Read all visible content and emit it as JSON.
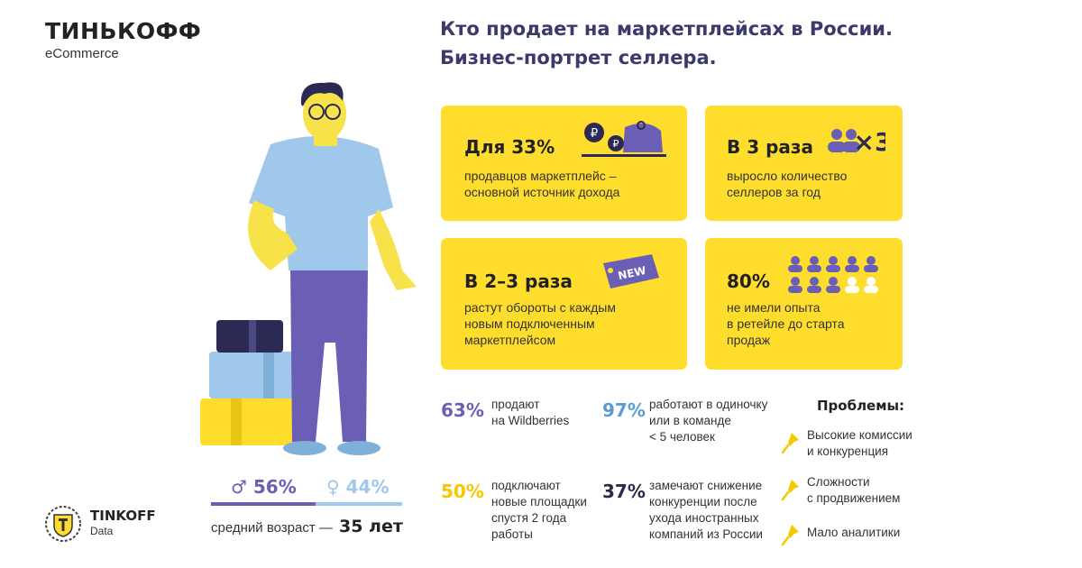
{
  "brand": {
    "name": "ТИНЬКОФФ",
    "sub": "eCommerce"
  },
  "headline": {
    "line1": "Кто продает на маркетплейсах в России.",
    "line2": "Бизнес-портрет селлера."
  },
  "cards": [
    {
      "title": "Для 33%",
      "text1": "продавцов маркетплейс –",
      "text2": "основной источник дохода",
      "text3": "",
      "icon": "wallet-coins-icon"
    },
    {
      "title": "В 3 раза",
      "text1": "выросло количество",
      "text2": "селлеров за год",
      "text3": "",
      "icon": "people-times-three-icon",
      "icon_text": "×3"
    },
    {
      "title": "В 2–3 раза",
      "text1": "растут обороты с каждым",
      "text2": "новым подключенным",
      "text3": "маркетплейсом",
      "icon": "new-tag-icon",
      "icon_text": "NEW"
    },
    {
      "title": "80%",
      "text1": "не имели опыта",
      "text2": "в ретейле до старта",
      "text3": "продаж",
      "icon": "people-grid-icon"
    }
  ],
  "stats": [
    {
      "value": "63%",
      "line1": "продают",
      "line2": "на Wildberries",
      "line3": "",
      "line4": "",
      "color": "#6b5fb5"
    },
    {
      "value": "97%",
      "line1": "работают в одиночку",
      "line2": "или в команде",
      "line3": "< 5 человек",
      "line4": "",
      "color": "#5b9bd5"
    },
    {
      "value": "50%",
      "line1": "подключают",
      "line2": "новые площадки",
      "line3": "спустя 2 года",
      "line4": "работы",
      "color": "#f5c800"
    },
    {
      "value": "37%",
      "line1": "замечают снижение",
      "line2": "конкуренции после",
      "line3": "ухода иностранных",
      "line4": "компаний из России",
      "color": "#2a2a4a"
    }
  ],
  "problems": {
    "title": "Проблемы:",
    "items": [
      {
        "line1": "Высокие комиссии",
        "line2": "и конкуренция"
      },
      {
        "line1": "Сложности",
        "line2": "с продвижением"
      },
      {
        "line1": "Мало аналитики",
        "line2": ""
      }
    ]
  },
  "gender": {
    "male": "♂ 56%",
    "female": "♀ 44%",
    "male_share": 56,
    "female_share": 44,
    "male_color": "#6b5fb5",
    "female_color": "#9fc8ea"
  },
  "age": {
    "label": "средний возраст —",
    "value": "35 лет"
  },
  "footer_logo": {
    "name": "TINKOFF",
    "sub": "Data"
  },
  "colors": {
    "card": "#ffdd2d",
    "purple": "#6b5fb5",
    "blue": "#9fc8ea",
    "yellow": "#f5c800"
  }
}
